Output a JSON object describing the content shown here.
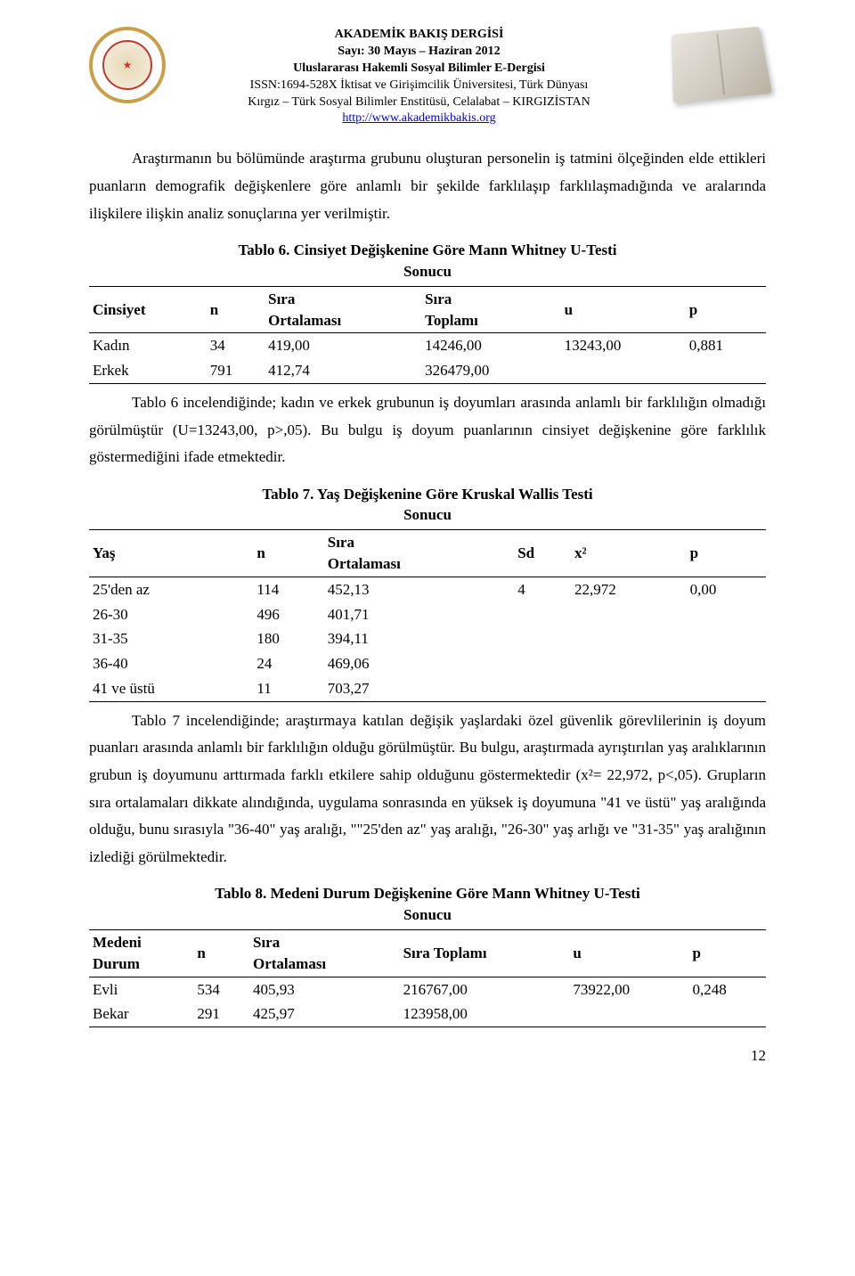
{
  "header": {
    "line1": "AKADEMİK BAKIŞ DERGİSİ",
    "line2": "Sayı: 30       Mayıs – Haziran 2012",
    "line3": "Uluslararası Hakemli Sosyal Bilimler E-Dergisi",
    "line4": "ISSN:1694-528X İktisat ve Girişimcilik Üniversitesi, Türk Dünyası",
    "line5": "Kırgız – Türk Sosyal Bilimler Enstitüsü, Celalabat – KIRGIZİSTAN",
    "link": "http://www.akademikbakis.org"
  },
  "para1": "Araştırmanın bu bölümünde araştırma grubunu oluşturan personelin iş tatmini ölçeğinden elde ettikleri puanların demografik değişkenlere göre anlamlı bir şekilde farklılaşıp farklılaşmadığında ve aralarında ilişkilere ilişkin analiz sonuçlarına yer verilmiştir.",
  "table6": {
    "title_l1": "Tablo 6. Cinsiyet Değişkenine Göre Mann Whitney U-Testi",
    "title_l2": "Sonucu",
    "headers": {
      "c0": "Cinsiyet",
      "c1": "n",
      "c2a": "Sıra",
      "c2b": "Ortalaması",
      "c3a": "Sıra",
      "c3b": "Toplamı",
      "c4": "u",
      "c5": "p"
    },
    "rows": [
      {
        "c0": "Kadın",
        "c1": "34",
        "c2": "419,00",
        "c3": "14246,00",
        "c4": "13243,00",
        "c5": "0,881"
      },
      {
        "c0": "Erkek",
        "c1": "791",
        "c2": "412,74",
        "c3": "326479,00",
        "c4": "",
        "c5": ""
      }
    ]
  },
  "para2": "Tablo 6 incelendiğinde; kadın ve erkek grubunun iş doyumları arasında anlamlı bir farklılığın olmadığı görülmüştür (U=13243,00, p>,05). Bu bulgu iş doyum puanlarının cinsiyet değişkenine göre farklılık göstermediğini ifade etmektedir.",
  "table7": {
    "title_l1": "Tablo 7. Yaş Değişkenine Göre Kruskal Wallis Testi",
    "title_l2": "Sonucu",
    "headers": {
      "c0": "Yaş",
      "c1": "n",
      "c2a": "Sıra",
      "c2b": "Ortalaması",
      "c3": "Sd",
      "c4": "x²",
      "c5": "p"
    },
    "rows": [
      {
        "c0": "25'den az",
        "c1": "114",
        "c2": "452,13",
        "c3": "4",
        "c4": "22,972",
        "c5": "0,00"
      },
      {
        "c0": "26-30",
        "c1": "496",
        "c2": "401,71",
        "c3": "",
        "c4": "",
        "c5": ""
      },
      {
        "c0": "31-35",
        "c1": "180",
        "c2": "394,11",
        "c3": "",
        "c4": "",
        "c5": ""
      },
      {
        "c0": "36-40",
        "c1": "24",
        "c2": "469,06",
        "c3": "",
        "c4": "",
        "c5": ""
      },
      {
        "c0": "41 ve üstü",
        "c1": "11",
        "c2": "703,27",
        "c3": "",
        "c4": "",
        "c5": ""
      }
    ]
  },
  "para3": "Tablo 7 incelendiğinde; araştırmaya katılan değişik yaşlardaki özel güvenlik görevlilerinin iş doyum puanları arasında anlamlı bir farklılığın olduğu görülmüştür. Bu bulgu,  araştırmada ayrıştırılan yaş aralıklarının grubun iş doyumunu arttırmada farklı etkilere sahip olduğunu göstermektedir (x²= 22,972, p<,05). Grupların sıra ortalamaları dikkate alındığında, uygulama sonrasında en yüksek iş doyumuna \"41 ve üstü\" yaş aralığında olduğu, bunu sırasıyla  \"36-40\" yaş aralığı, \"\"25'den az\" yaş aralığı, \"26-30\" yaş arlığı ve \"31-35\" yaş aralığının izlediği görülmektedir.",
  "table8": {
    "title_l1": "Tablo 8. Medeni Durum Değişkenine Göre Mann Whitney U-Testi",
    "title_l2": "Sonucu",
    "headers": {
      "c0a": "Medeni",
      "c0b": "Durum",
      "c1": "n",
      "c2a": "Sıra",
      "c2b": "Ortalaması",
      "c3": "Sıra Toplamı",
      "c4": "u",
      "c5": "p"
    },
    "rows": [
      {
        "c0": "Evli",
        "c1": "534",
        "c2": "405,93",
        "c3": "216767,00",
        "c4": "73922,00",
        "c5": "0,248"
      },
      {
        "c0": "Bekar",
        "c1": "291",
        "c2": "425,97",
        "c3": "123958,00",
        "c4": "",
        "c5": ""
      }
    ]
  },
  "pageNumber": "12"
}
